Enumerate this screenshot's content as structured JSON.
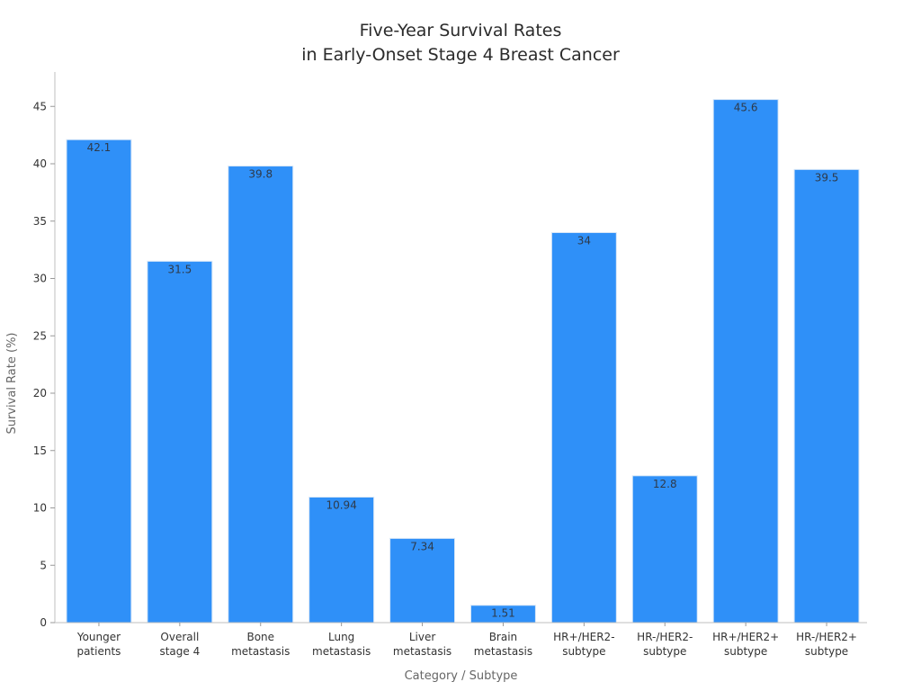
{
  "chart_data": {
    "type": "bar",
    "title_lines": [
      "Five-Year Survival Rates",
      "in Early-Onset Stage 4 Breast Cancer"
    ],
    "xlabel": "Category / Subtype",
    "ylabel": "Survival Rate (%)",
    "ylim": [
      0,
      48
    ],
    "yticks": [
      0,
      5,
      10,
      15,
      20,
      25,
      30,
      35,
      40,
      45
    ],
    "grid": false,
    "bar_color": "#2f90f8",
    "categories": [
      [
        "Younger",
        "patients"
      ],
      [
        "Overall",
        "stage 4"
      ],
      [
        "Bone",
        "metastasis"
      ],
      [
        "Lung",
        "metastasis"
      ],
      [
        "Liver",
        "metastasis"
      ],
      [
        "Brain",
        "metastasis"
      ],
      [
        "HR+/HER2-",
        "subtype"
      ],
      [
        "HR-/HER2-",
        "subtype"
      ],
      [
        "HR+/HER2+",
        "subtype"
      ],
      [
        "HR-/HER2+",
        "subtype"
      ]
    ],
    "values": [
      42.1,
      31.5,
      39.8,
      10.94,
      7.34,
      1.51,
      34,
      12.8,
      45.6,
      39.5
    ],
    "value_labels": [
      "42.1",
      "31.5",
      "39.8",
      "10.94",
      "7.34",
      "1.51",
      "34",
      "12.8",
      "45.6",
      "39.5"
    ]
  }
}
